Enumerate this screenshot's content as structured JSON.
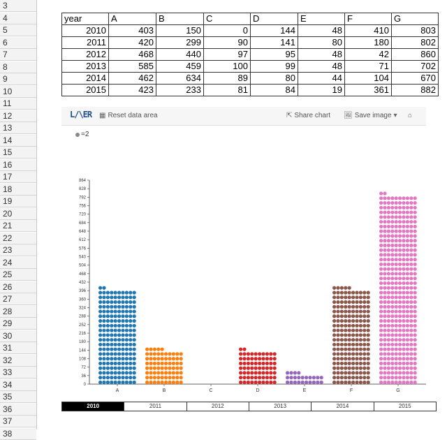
{
  "row_numbers": [
    "3",
    "4",
    "5",
    "6",
    "7",
    "8",
    "9",
    "10",
    "11",
    "12",
    "13",
    "14",
    "15",
    "16",
    "17",
    "18",
    "19",
    "20",
    "21",
    "22",
    "23",
    "24",
    "25",
    "26",
    "27",
    "28",
    "29",
    "30",
    "31",
    "32",
    "33",
    "34",
    "35",
    "36",
    "37",
    "38"
  ],
  "table": {
    "headers": [
      "year",
      "A",
      "B",
      "C",
      "D",
      "E",
      "F",
      "G"
    ],
    "rows": [
      [
        "2010",
        "403",
        "150",
        "0",
        "144",
        "48",
        "410",
        "803"
      ],
      [
        "2011",
        "420",
        "299",
        "90",
        "141",
        "80",
        "180",
        "802"
      ],
      [
        "2012",
        "468",
        "440",
        "97",
        "95",
        "48",
        "42",
        "860"
      ],
      [
        "2013",
        "585",
        "459",
        "100",
        "99",
        "48",
        "71",
        "702"
      ],
      [
        "2014",
        "462",
        "634",
        "89",
        "80",
        "44",
        "104",
        "670"
      ],
      [
        "2015",
        "423",
        "233",
        "81",
        "84",
        "19",
        "361",
        "882"
      ]
    ]
  },
  "toolbar": {
    "logo": "L/\\ER",
    "reset_label": "Reset data area",
    "share_label": "Share chart",
    "save_label": "Save image",
    "home_icon": "home-icon"
  },
  "legend": {
    "label": "=2"
  },
  "chart_data": {
    "type": "bar",
    "categories": [
      "A",
      "B",
      "C",
      "D",
      "E",
      "F",
      "G"
    ],
    "year": "2010",
    "values": [
      403,
      150,
      0,
      144,
      48,
      410,
      803
    ],
    "yticks": [
      0,
      36,
      72,
      108,
      144,
      180,
      216,
      252,
      288,
      324,
      360,
      396,
      432,
      468,
      504,
      540,
      576,
      612,
      648,
      684,
      720,
      756,
      792,
      828,
      864
    ],
    "ylim": [
      0,
      864
    ],
    "colors": [
      "#1f77b4",
      "#ff7f0e",
      "#2ca02c",
      "#d62728",
      "#9467bd",
      "#8c564b",
      "#e377c2"
    ]
  },
  "timeline": {
    "years": [
      "2010",
      "2011",
      "2012",
      "2013",
      "2014",
      "2015"
    ],
    "selected": "2010"
  }
}
